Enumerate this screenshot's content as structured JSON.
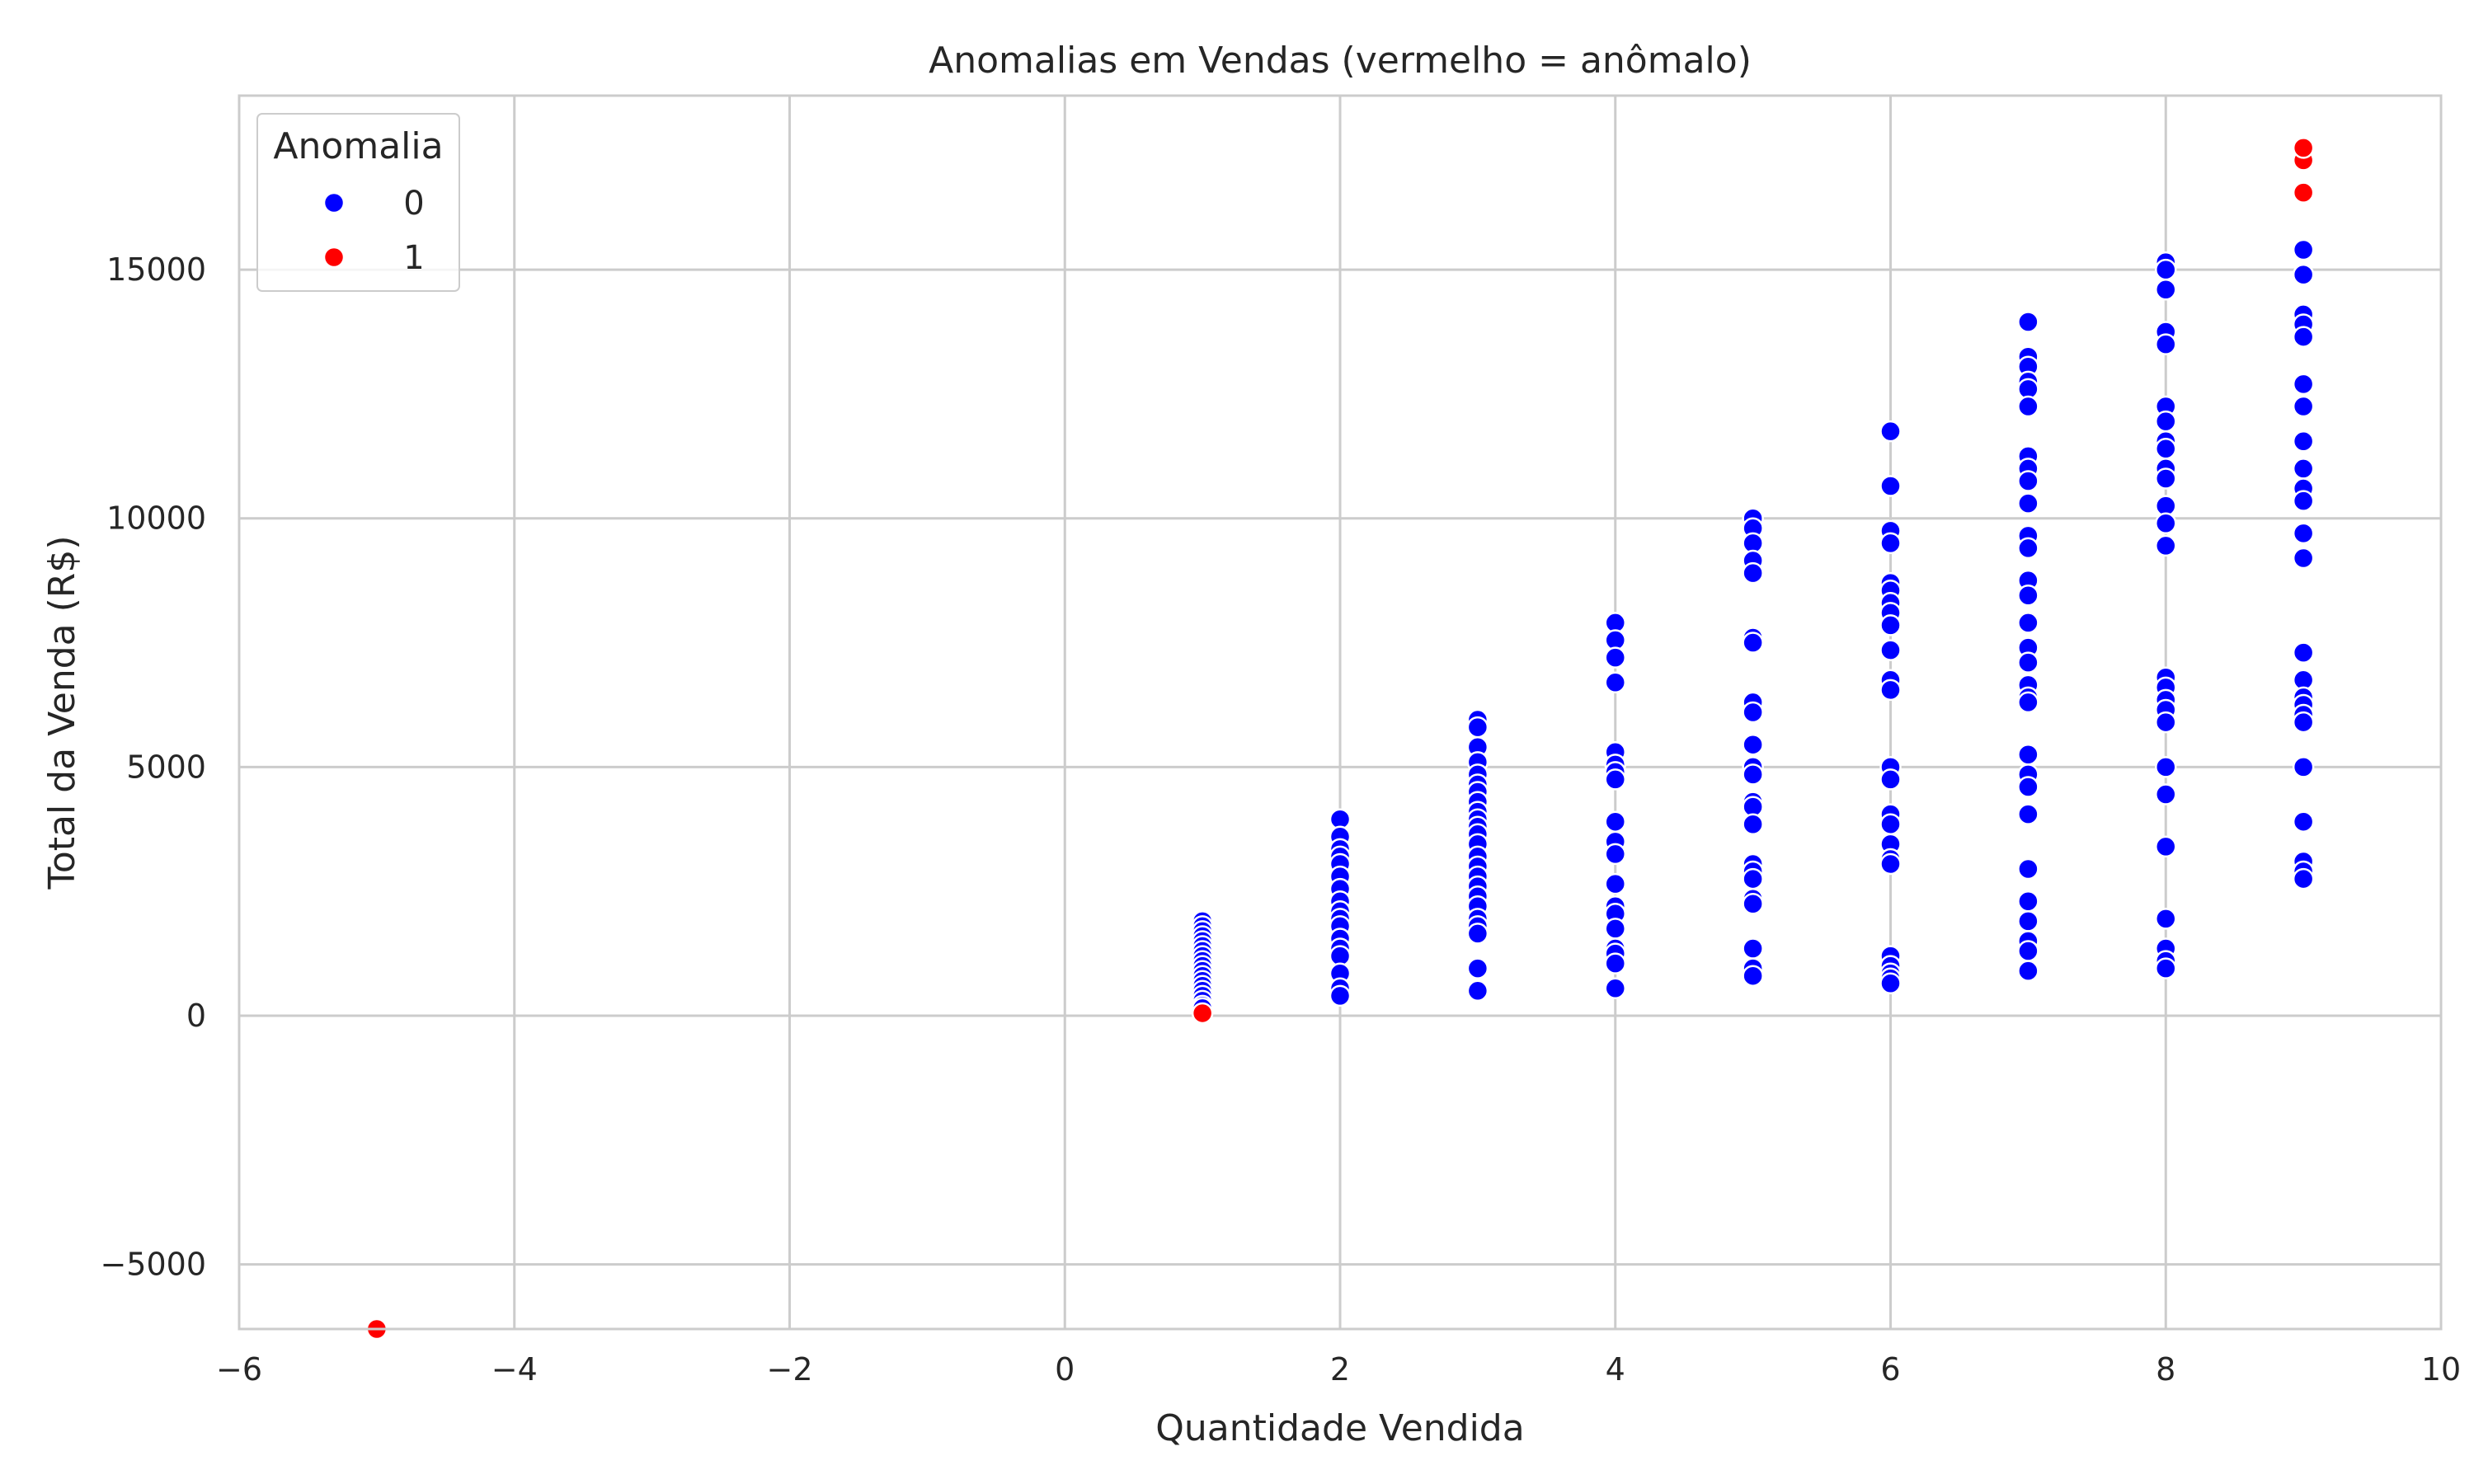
{
  "chart_data": {
    "type": "scatter",
    "title": "Anomalias em Vendas (vermelho = anômalo)",
    "xlabel": "Quantidade Vendida",
    "ylabel": "Total da Venda (R$)",
    "xlim": [
      -6,
      10
    ],
    "ylim": [
      -6300,
      18500
    ],
    "xticks": [
      -6,
      -4,
      -2,
      0,
      2,
      4,
      6,
      8,
      10
    ],
    "xtick_labels": [
      "−6",
      "−4",
      "−2",
      "0",
      "2",
      "4",
      "6",
      "8",
      "10"
    ],
    "yticks": [
      -5000,
      0,
      5000,
      10000,
      15000
    ],
    "ytick_labels": [
      "−5000",
      "0",
      "5000",
      "10000",
      "15000"
    ],
    "grid": true,
    "legend": {
      "title": "Anomalia",
      "placement": "top-left"
    },
    "series": [
      {
        "name": "0",
        "color": "#0000ff",
        "points": [
          [
            1,
            1900
          ],
          [
            1,
            1800
          ],
          [
            1,
            1700
          ],
          [
            1,
            1600
          ],
          [
            1,
            1500
          ],
          [
            1,
            1400
          ],
          [
            1,
            1300
          ],
          [
            1,
            1200
          ],
          [
            1,
            1100
          ],
          [
            1,
            1000
          ],
          [
            1,
            900
          ],
          [
            1,
            800
          ],
          [
            1,
            700
          ],
          [
            1,
            600
          ],
          [
            1,
            500
          ],
          [
            1,
            400
          ],
          [
            1,
            300
          ],
          [
            1,
            200
          ],
          [
            1,
            150
          ],
          [
            2,
            3950
          ],
          [
            2,
            3600
          ],
          [
            2,
            3350
          ],
          [
            2,
            3200
          ],
          [
            2,
            3050
          ],
          [
            2,
            2800
          ],
          [
            2,
            2550
          ],
          [
            2,
            2300
          ],
          [
            2,
            2100
          ],
          [
            2,
            1950
          ],
          [
            2,
            1800
          ],
          [
            2,
            1550
          ],
          [
            2,
            1350
          ],
          [
            2,
            1200
          ],
          [
            2,
            850
          ],
          [
            2,
            550
          ],
          [
            2,
            400
          ],
          [
            3,
            5950
          ],
          [
            3,
            5800
          ],
          [
            3,
            5400
          ],
          [
            3,
            5100
          ],
          [
            3,
            4850
          ],
          [
            3,
            4650
          ],
          [
            3,
            4500
          ],
          [
            3,
            4300
          ],
          [
            3,
            4100
          ],
          [
            3,
            3950
          ],
          [
            3,
            3800
          ],
          [
            3,
            3650
          ],
          [
            3,
            3450
          ],
          [
            3,
            3200
          ],
          [
            3,
            3000
          ],
          [
            3,
            2800
          ],
          [
            3,
            2600
          ],
          [
            3,
            2400
          ],
          [
            3,
            2200
          ],
          [
            3,
            1950
          ],
          [
            3,
            1800
          ],
          [
            3,
            1650
          ],
          [
            3,
            950
          ],
          [
            3,
            500
          ],
          [
            4,
            7900
          ],
          [
            4,
            7550
          ],
          [
            4,
            7200
          ],
          [
            4,
            6700
          ],
          [
            4,
            5300
          ],
          [
            4,
            5050
          ],
          [
            4,
            4900
          ],
          [
            4,
            4750
          ],
          [
            4,
            3900
          ],
          [
            4,
            3500
          ],
          [
            4,
            3250
          ],
          [
            4,
            2650
          ],
          [
            4,
            2200
          ],
          [
            4,
            2050
          ],
          [
            4,
            1750
          ],
          [
            4,
            1350
          ],
          [
            4,
            1250
          ],
          [
            4,
            1050
          ],
          [
            4,
            550
          ],
          [
            5,
            10000
          ],
          [
            5,
            9800
          ],
          [
            5,
            9500
          ],
          [
            5,
            9150
          ],
          [
            5,
            8900
          ],
          [
            5,
            7600
          ],
          [
            5,
            7500
          ],
          [
            5,
            6300
          ],
          [
            5,
            6100
          ],
          [
            5,
            5450
          ],
          [
            5,
            5000
          ],
          [
            5,
            4850
          ],
          [
            5,
            4300
          ],
          [
            5,
            4200
          ],
          [
            5,
            3850
          ],
          [
            5,
            3050
          ],
          [
            5,
            2900
          ],
          [
            5,
            2750
          ],
          [
            5,
            2350
          ],
          [
            5,
            2250
          ],
          [
            5,
            1350
          ],
          [
            5,
            950
          ],
          [
            5,
            800
          ],
          [
            6,
            11750
          ],
          [
            6,
            10650
          ],
          [
            6,
            9750
          ],
          [
            6,
            9500
          ],
          [
            6,
            8700
          ],
          [
            6,
            8550
          ],
          [
            6,
            8300
          ],
          [
            6,
            8100
          ],
          [
            6,
            7850
          ],
          [
            6,
            7350
          ],
          [
            6,
            6750
          ],
          [
            6,
            6550
          ],
          [
            6,
            5000
          ],
          [
            6,
            4750
          ],
          [
            6,
            4050
          ],
          [
            6,
            3850
          ],
          [
            6,
            3450
          ],
          [
            6,
            3150
          ],
          [
            6,
            3050
          ],
          [
            6,
            1200
          ],
          [
            6,
            1000
          ],
          [
            6,
            850
          ],
          [
            6,
            750
          ],
          [
            6,
            650
          ],
          [
            7,
            13950
          ],
          [
            7,
            13250
          ],
          [
            7,
            13050
          ],
          [
            7,
            12750
          ],
          [
            7,
            12600
          ],
          [
            7,
            12250
          ],
          [
            7,
            11250
          ],
          [
            7,
            11000
          ],
          [
            7,
            10750
          ],
          [
            7,
            10300
          ],
          [
            7,
            9650
          ],
          [
            7,
            9400
          ],
          [
            7,
            8750
          ],
          [
            7,
            8450
          ],
          [
            7,
            7900
          ],
          [
            7,
            7400
          ],
          [
            7,
            7100
          ],
          [
            7,
            6650
          ],
          [
            7,
            6400
          ],
          [
            7,
            6300
          ],
          [
            7,
            5250
          ],
          [
            7,
            4850
          ],
          [
            7,
            4600
          ],
          [
            7,
            4050
          ],
          [
            7,
            2950
          ],
          [
            7,
            2300
          ],
          [
            7,
            1900
          ],
          [
            7,
            1500
          ],
          [
            7,
            1300
          ],
          [
            7,
            900
          ],
          [
            8,
            15150
          ],
          [
            8,
            15000
          ],
          [
            8,
            14600
          ],
          [
            8,
            13750
          ],
          [
            8,
            13500
          ],
          [
            8,
            12250
          ],
          [
            8,
            11950
          ],
          [
            8,
            11550
          ],
          [
            8,
            11400
          ],
          [
            8,
            11000
          ],
          [
            8,
            10800
          ],
          [
            8,
            10250
          ],
          [
            8,
            9900
          ],
          [
            8,
            9450
          ],
          [
            8,
            6800
          ],
          [
            8,
            6600
          ],
          [
            8,
            6350
          ],
          [
            8,
            6150
          ],
          [
            8,
            5900
          ],
          [
            8,
            5000
          ],
          [
            8,
            4450
          ],
          [
            8,
            3400
          ],
          [
            8,
            1950
          ],
          [
            8,
            1350
          ],
          [
            8,
            1100
          ],
          [
            8,
            950
          ],
          [
            9,
            15400
          ],
          [
            9,
            14900
          ],
          [
            9,
            14100
          ],
          [
            9,
            13900
          ],
          [
            9,
            13650
          ],
          [
            9,
            12700
          ],
          [
            9,
            12250
          ],
          [
            9,
            11550
          ],
          [
            9,
            11000
          ],
          [
            9,
            10600
          ],
          [
            9,
            10350
          ],
          [
            9,
            9700
          ],
          [
            9,
            9200
          ],
          [
            9,
            7300
          ],
          [
            9,
            6750
          ],
          [
            9,
            6400
          ],
          [
            9,
            6250
          ],
          [
            9,
            6050
          ],
          [
            9,
            5900
          ],
          [
            9,
            5000
          ],
          [
            9,
            3900
          ],
          [
            9,
            3100
          ],
          [
            9,
            2900
          ],
          [
            9,
            2750
          ]
        ]
      },
      {
        "name": "1",
        "color": "#ff0000",
        "points": [
          [
            -5,
            -6300
          ],
          [
            1,
            50
          ],
          [
            9,
            16550
          ],
          [
            9,
            17200
          ],
          [
            9,
            17450
          ]
        ]
      }
    ]
  }
}
